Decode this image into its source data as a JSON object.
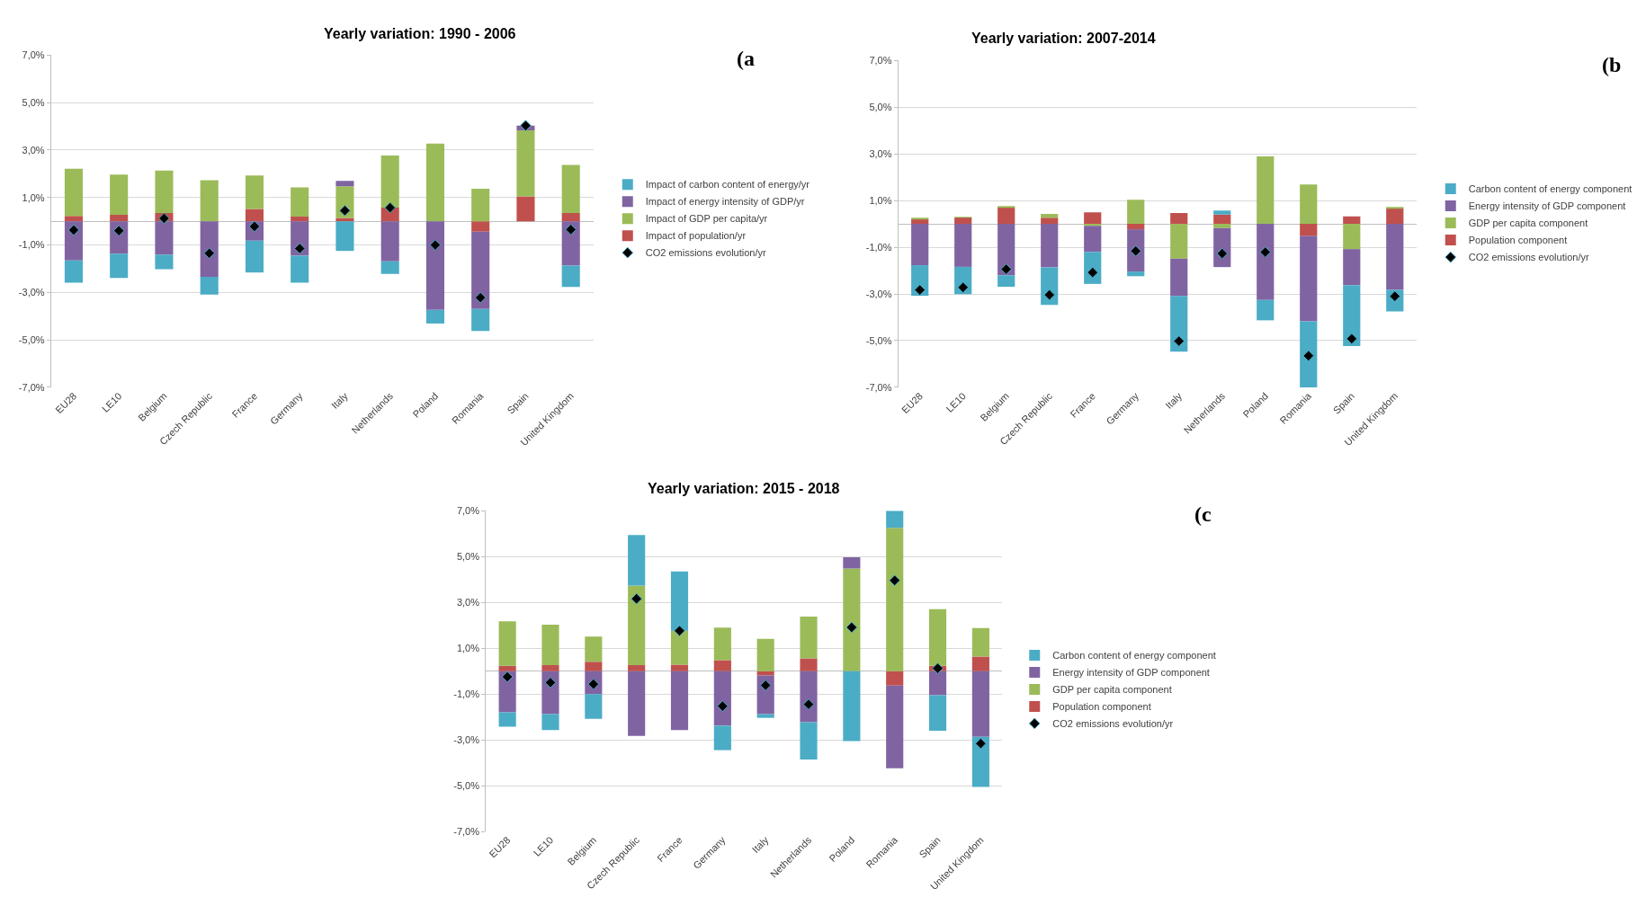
{
  "chart_data": [
    {
      "type": "bar",
      "title": "Yearly variation: 1990 - 2006",
      "stacked": true,
      "annotations": [
        "(a"
      ],
      "legend": "right",
      "grid": "y",
      "marker": "diamond",
      "categories": [
        "EU28",
        "LE10",
        "Belgium",
        "Czech Republic",
        "France",
        "Germany",
        "Italy",
        "Netherlands",
        "Poland",
        "Romania",
        "Spain",
        "United Kingdom"
      ],
      "ylim": [
        -7,
        7
      ],
      "yticks": [
        {
          "value": -7,
          "label": "-7,0%"
        },
        {
          "value": -5,
          "label": "-5,0%"
        },
        {
          "value": -3,
          "label": "-3,0%"
        },
        {
          "value": -1,
          "label": "-1,0%"
        },
        {
          "value": 1,
          "label": "1,0%"
        },
        {
          "value": 3,
          "label": "3,0%"
        },
        {
          "value": 5,
          "label": "5,0%"
        },
        {
          "value": 7,
          "label": "7,0%"
        }
      ],
      "series": [
        {
          "name": "Impact of population/yr",
          "color": "#c0504d",
          "values": [
            0.22,
            0.27,
            0.35,
            0,
            0.52,
            0.19,
            0.14,
            0.57,
            0,
            -0.44,
            1.05,
            0.35
          ]
        },
        {
          "name": "Impact of GDP per capita/yr",
          "color": "#9bbb59",
          "values": [
            1.99,
            1.7,
            1.79,
            1.73,
            1.41,
            1.24,
            1.33,
            2.2,
            3.27,
            1.37,
            2.78,
            2.02
          ]
        },
        {
          "name": "Impact of energy intensity of GDP/yr",
          "color": "#8064a2",
          "values": [
            -1.65,
            -1.37,
            -1.41,
            -2.34,
            -0.82,
            -1.45,
            0.23,
            -1.69,
            -3.74,
            -3.26,
            0.2,
            -1.87
          ]
        },
        {
          "name": "Impact of carbon content of energy/yr",
          "color": "#4bacc6",
          "values": [
            -0.94,
            -1.02,
            -0.61,
            -0.75,
            -1.34,
            -1.14,
            -1.25,
            -0.53,
            -0.57,
            -0.93,
            0,
            -0.9
          ]
        },
        {
          "name": "CO2 emissions evolution/yr",
          "type": "scatter",
          "color": "#000000",
          "values": [
            -0.37,
            -0.4,
            0.12,
            -1.35,
            -0.22,
            -1.15,
            0.45,
            0.57,
            -1.0,
            -3.22,
            4.03,
            -0.35
          ]
        }
      ]
    },
    {
      "type": "bar",
      "title": "Yearly variation: 2007-2014",
      "stacked": true,
      "annotations": [
        "(b"
      ],
      "legend": "right",
      "grid": "y",
      "marker": "diamond",
      "categories": [
        "EU28",
        "LE10",
        "Belgium",
        "Czech Republic",
        "France",
        "Germany",
        "Italy",
        "Netherlands",
        "Poland",
        "Romania",
        "Spain",
        "United Kingdom"
      ],
      "ylim": [
        -7,
        7
      ],
      "yticks": [
        {
          "value": -7,
          "label": "-7,0%"
        },
        {
          "value": -5,
          "label": "-5,0%"
        },
        {
          "value": -3,
          "label": "-3,0%"
        },
        {
          "value": -1,
          "label": "-1,0%"
        },
        {
          "value": 1,
          "label": "1,0%"
        },
        {
          "value": 3,
          "label": "3,0%"
        },
        {
          "value": 5,
          "label": "5,0%"
        },
        {
          "value": 7,
          "label": "7,0%"
        }
      ],
      "series": [
        {
          "name": "Population component",
          "color": "#c0504d",
          "values": [
            0.22,
            0.27,
            0.71,
            0.26,
            0.49,
            -0.23,
            0.47,
            0.4,
            0,
            -0.52,
            0.32,
            0.67
          ]
        },
        {
          "name": "GDP per capita component",
          "color": "#9bbb59",
          "values": [
            0.02,
            0.02,
            0.05,
            0.17,
            -0.08,
            1.03,
            -1.49,
            -0.18,
            2.89,
            1.69,
            -1.08,
            0.04
          ]
        },
        {
          "name": "Energy intensity of GDP component",
          "color": "#8064a2",
          "values": [
            -1.77,
            -1.84,
            -2.2,
            -1.86,
            -1.12,
            -1.81,
            -1.6,
            -1.67,
            -3.26,
            -3.65,
            -1.54,
            -2.83
          ]
        },
        {
          "name": "Carbon content of energy component",
          "color": "#4bacc6",
          "values": [
            -1.31,
            -1.17,
            -0.49,
            -1.61,
            -1.37,
            -0.2,
            -2.38,
            0.17,
            -0.87,
            -2.83,
            -2.61,
            -0.92
          ]
        },
        {
          "name": "CO2 emissions evolution/yr",
          "type": "scatter",
          "color": "#000000",
          "values": [
            -2.83,
            -2.72,
            -1.94,
            -3.04,
            -2.08,
            -1.16,
            -5.02,
            -1.27,
            -1.21,
            -5.65,
            -4.92,
            -3.1
          ]
        }
      ]
    },
    {
      "type": "bar",
      "title": "Yearly variation: 2015 - 2018",
      "stacked": true,
      "annotations": [
        "(c"
      ],
      "legend": "right",
      "grid": "y",
      "marker": "diamond",
      "categories": [
        "EU28",
        "LE10",
        "Belgium",
        "Czech Republic",
        "France",
        "Germany",
        "Italy",
        "Netherlands",
        "Poland",
        "Romania",
        "Spain",
        "United Kingdom"
      ],
      "ylim": [
        -7,
        7
      ],
      "yticks": [
        {
          "value": -7,
          "label": "-7,0%"
        },
        {
          "value": -5,
          "label": "-5,0%"
        },
        {
          "value": -3,
          "label": "-3,0%"
        },
        {
          "value": -1,
          "label": "-1,0%"
        },
        {
          "value": 1,
          "label": "1,0%"
        },
        {
          "value": 3,
          "label": "3,0%"
        },
        {
          "value": 5,
          "label": "5,0%"
        },
        {
          "value": 7,
          "label": "7,0%"
        }
      ],
      "series": [
        {
          "name": "Population component",
          "color": "#c0504d",
          "values": [
            0.23,
            0.26,
            0.41,
            0.26,
            0.28,
            0.48,
            -0.19,
            0.56,
            0,
            -0.63,
            0.23,
            0.63
          ]
        },
        {
          "name": "GDP per capita component",
          "color": "#9bbb59",
          "values": [
            1.94,
            1.77,
            1.1,
            3.47,
            1.48,
            1.42,
            1.41,
            1.82,
            4.48,
            6.26,
            2.47,
            1.25
          ]
        },
        {
          "name": "Energy intensity of GDP component",
          "color": "#8064a2",
          "values": [
            -1.8,
            -1.88,
            -1.0,
            -2.83,
            -2.57,
            -2.38,
            -1.69,
            -2.23,
            0.49,
            -3.61,
            -1.05,
            -2.87
          ]
        },
        {
          "name": "Carbon content of energy component",
          "color": "#4bacc6",
          "values": [
            -0.63,
            -0.69,
            -1.08,
            2.21,
            2.59,
            -1.07,
            -0.16,
            -1.63,
            -3.05,
            0.74,
            -1.55,
            -2.19
          ]
        },
        {
          "name": "CO2 emissions evolution/yr",
          "type": "scatter",
          "color": "#000000",
          "values": [
            -0.25,
            -0.5,
            -0.57,
            3.16,
            1.76,
            -1.53,
            -0.62,
            -1.45,
            1.91,
            3.96,
            0.12,
            -3.16
          ]
        }
      ]
    }
  ]
}
